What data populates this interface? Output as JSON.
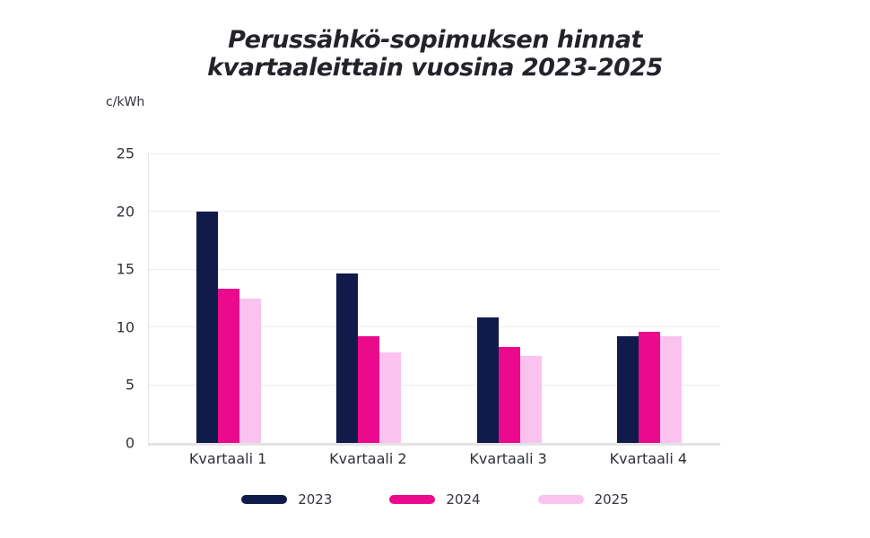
{
  "title": {
    "line1": "Perussähkö-sopimuksen hinnat",
    "line2": "kvartaaleittain vuosina 2023-2025"
  },
  "y_axis": {
    "unit": "c/kWh",
    "ticks": [
      0,
      5,
      10,
      15,
      20,
      25
    ]
  },
  "chart_data": {
    "type": "bar",
    "title": "Perussähkö-sopimuksen hinnat kvartaaleittain vuosina 2023-2025",
    "xlabel": "",
    "ylabel": "c/kWh",
    "ylim": [
      0,
      25
    ],
    "yticks": [
      0,
      5,
      10,
      15,
      20,
      25
    ],
    "grid": true,
    "legend_position": "bottom",
    "categories": [
      "Kvartaali 1",
      "Kvartaali 2",
      "Kvartaali 3",
      "Kvartaali 4"
    ],
    "series": [
      {
        "name": "2023",
        "color": "#101a4b",
        "values": [
          20.0,
          14.6,
          10.8,
          9.2
        ]
      },
      {
        "name": "2024",
        "color": "#eb0a8c",
        "values": [
          13.3,
          9.2,
          8.3,
          9.6
        ]
      },
      {
        "name": "2025",
        "color": "#fbc2f0",
        "values": [
          12.5,
          7.8,
          7.5,
          9.2
        ]
      }
    ]
  },
  "colors": {
    "background": "#ffffff",
    "gridline": "#ececec",
    "axis_line": "#e4e4e4",
    "title_text": "#23232a",
    "axis_text": "#2f333b"
  }
}
